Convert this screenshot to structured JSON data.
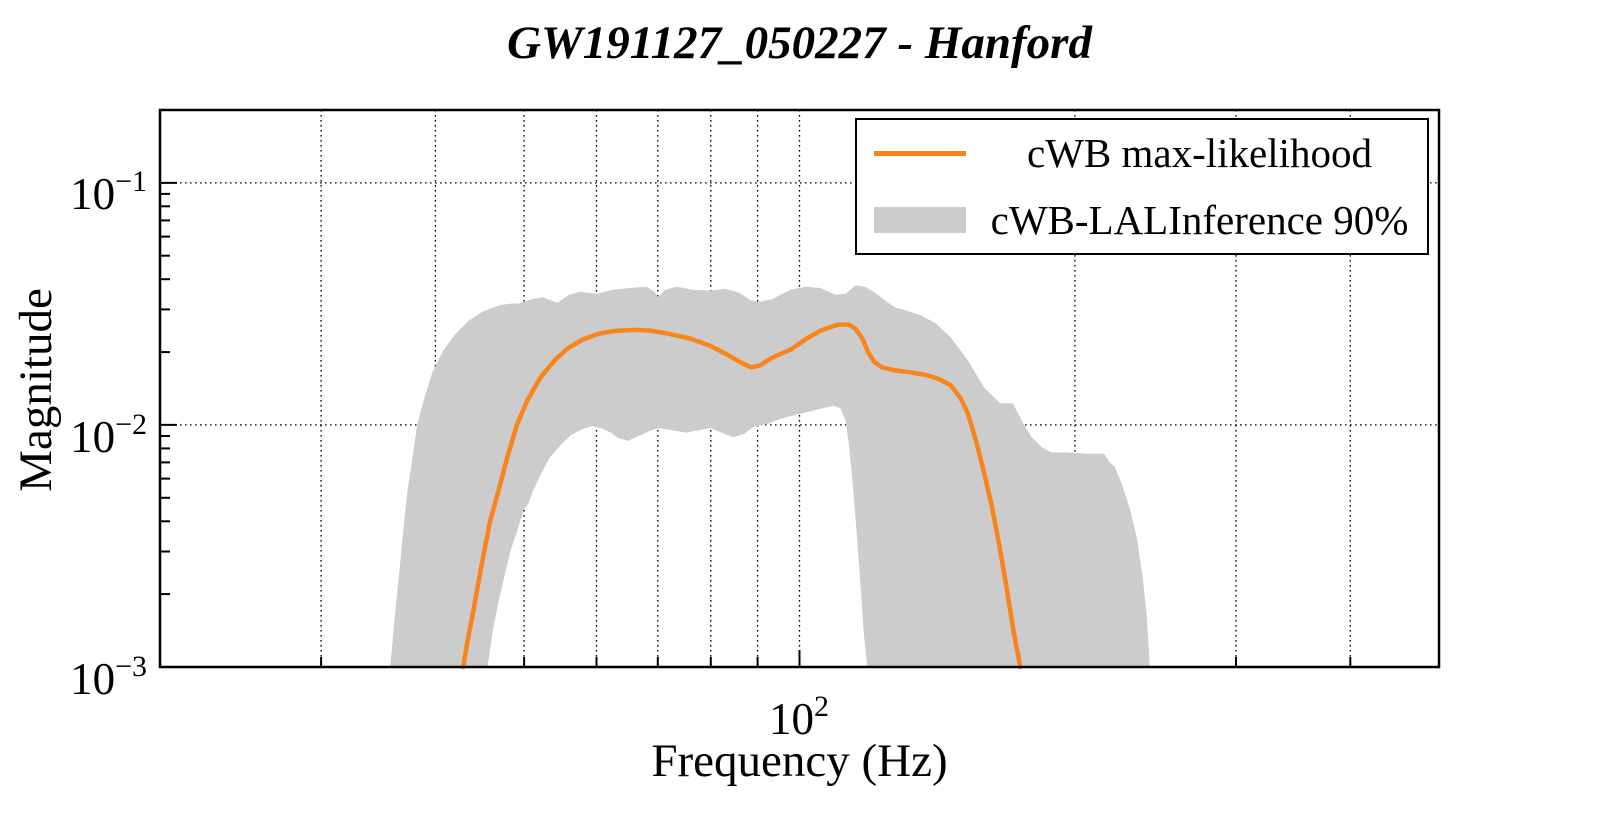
{
  "chart_data": {
    "type": "line",
    "title": "GW191127_050227 - Hanford",
    "xlabel": "Frequency (Hz)",
    "ylabel": "Magnitude",
    "x_scale": "log",
    "y_scale": "log",
    "x_range_hz": [
      20,
      500
    ],
    "y_range": [
      0.001,
      0.2
    ],
    "grid": "dotted",
    "x_gridlines_hz": [
      30,
      40,
      50,
      60,
      70,
      80,
      90,
      100,
      200,
      300,
      400
    ],
    "y_gridlines": [
      0.01,
      0.1
    ],
    "x_tick_labels": [
      {
        "base": "10",
        "exp": "2",
        "value": 100
      }
    ],
    "y_tick_labels": [
      {
        "base": "10",
        "exp": "−1",
        "value": 0.1
      },
      {
        "base": "10",
        "exp": "−2",
        "value": 0.01
      },
      {
        "base": "10",
        "exp": "−3",
        "value": 0.001
      }
    ],
    "legend": {
      "position": "top-right",
      "entries": [
        {
          "label": "cWB max-likelihood",
          "swatch": "line",
          "color": "#f8851c"
        },
        {
          "label": "cWB-LALInference 90%",
          "swatch": "box",
          "color": "#cccccc"
        }
      ]
    },
    "series": [
      {
        "name": "cWB max-likelihood",
        "kind": "line",
        "color": "#f8851c",
        "points": [
          [
            42.9,
            0.001
          ],
          [
            43.4,
            0.0013
          ],
          [
            44.0,
            0.0017
          ],
          [
            44.9,
            0.0026
          ],
          [
            45.9,
            0.004
          ],
          [
            47.1,
            0.0057
          ],
          [
            48.0,
            0.0075
          ],
          [
            49.1,
            0.01
          ],
          [
            50.4,
            0.0126
          ],
          [
            52.1,
            0.0157
          ],
          [
            54.0,
            0.0185
          ],
          [
            55.8,
            0.0207
          ],
          [
            57.9,
            0.0225
          ],
          [
            60.3,
            0.0238
          ],
          [
            63.1,
            0.0245
          ],
          [
            66.4,
            0.0247
          ],
          [
            68.9,
            0.0245
          ],
          [
            72.0,
            0.0238
          ],
          [
            76.1,
            0.0227
          ],
          [
            79.9,
            0.0212
          ],
          [
            83.6,
            0.0194
          ],
          [
            86.5,
            0.018
          ],
          [
            88.5,
            0.0173
          ],
          [
            90.5,
            0.0176
          ],
          [
            93.2,
            0.0189
          ],
          [
            97.8,
            0.0205
          ],
          [
            102.3,
            0.023
          ],
          [
            105.9,
            0.0247
          ],
          [
            110.3,
            0.026
          ],
          [
            113.1,
            0.026
          ],
          [
            115.1,
            0.025
          ],
          [
            117.1,
            0.0228
          ],
          [
            118.9,
            0.0199
          ],
          [
            120.7,
            0.0182
          ],
          [
            123.1,
            0.0173
          ],
          [
            127.2,
            0.0168
          ],
          [
            132.1,
            0.0165
          ],
          [
            137.3,
            0.0161
          ],
          [
            141.9,
            0.0155
          ],
          [
            146.3,
            0.0146
          ],
          [
            150.0,
            0.0129
          ],
          [
            152.7,
            0.0112
          ],
          [
            155.8,
            0.0087
          ],
          [
            158.9,
            0.0065
          ],
          [
            162.1,
            0.0047
          ],
          [
            165.3,
            0.0032
          ],
          [
            168.5,
            0.0021
          ],
          [
            171.4,
            0.0014
          ],
          [
            174.3,
            0.001
          ]
        ]
      },
      {
        "name": "cWB-LALInference 90%",
        "kind": "band",
        "color": "#cccccc",
        "upper": [
          [
            35.7,
            0.001
          ],
          [
            36.1,
            0.0016
          ],
          [
            36.5,
            0.0024
          ],
          [
            36.9,
            0.0037
          ],
          [
            37.3,
            0.0054
          ],
          [
            37.8,
            0.0075
          ],
          [
            38.2,
            0.01
          ],
          [
            38.9,
            0.0129
          ],
          [
            39.7,
            0.0165
          ],
          [
            40.8,
            0.0203
          ],
          [
            42.1,
            0.0238
          ],
          [
            43.5,
            0.0269
          ],
          [
            45.1,
            0.0295
          ],
          [
            47.1,
            0.0313
          ],
          [
            48.4,
            0.0317
          ],
          [
            49.3,
            0.0317
          ],
          [
            50.9,
            0.033
          ],
          [
            52.4,
            0.0337
          ],
          [
            53.4,
            0.0328
          ],
          [
            54.4,
            0.032
          ],
          [
            56.0,
            0.0345
          ],
          [
            57.6,
            0.0355
          ],
          [
            60.2,
            0.0348
          ],
          [
            62.5,
            0.0362
          ],
          [
            65.3,
            0.0368
          ],
          [
            68.1,
            0.0372
          ],
          [
            69.4,
            0.0355
          ],
          [
            70.1,
            0.0337
          ],
          [
            71.3,
            0.0362
          ],
          [
            73.5,
            0.0372
          ],
          [
            76.3,
            0.0362
          ],
          [
            79.9,
            0.0359
          ],
          [
            82.8,
            0.0365
          ],
          [
            85.9,
            0.0352
          ],
          [
            88.3,
            0.0328
          ],
          [
            90.3,
            0.0322
          ],
          [
            93.2,
            0.033
          ],
          [
            97.8,
            0.0362
          ],
          [
            101.5,
            0.0372
          ],
          [
            105.4,
            0.0368
          ],
          [
            109.5,
            0.0345
          ],
          [
            112.3,
            0.0348
          ],
          [
            115.1,
            0.0377
          ],
          [
            117.9,
            0.0372
          ],
          [
            120.9,
            0.0352
          ],
          [
            123.9,
            0.0328
          ],
          [
            127.2,
            0.0306
          ],
          [
            130.4,
            0.0298
          ],
          [
            135.7,
            0.0284
          ],
          [
            140.8,
            0.0263
          ],
          [
            146.3,
            0.023
          ],
          [
            152.7,
            0.0185
          ],
          [
            159.3,
            0.0142
          ],
          [
            165.7,
            0.0123
          ],
          [
            171.0,
            0.0123
          ],
          [
            176.0,
            0.01
          ],
          [
            179.4,
            0.0089
          ],
          [
            183.9,
            0.0081
          ],
          [
            188.2,
            0.0077
          ],
          [
            195.8,
            0.0077
          ],
          [
            206.0,
            0.0076
          ],
          [
            215.2,
            0.0076
          ],
          [
            218.4,
            0.007
          ],
          [
            221.1,
            0.0067
          ],
          [
            225.1,
            0.0057
          ],
          [
            229.7,
            0.0045
          ],
          [
            233.8,
            0.0034
          ],
          [
            237.3,
            0.0023
          ],
          [
            239.7,
            0.0016
          ],
          [
            241.5,
            0.001
          ]
        ],
        "lower": [
          [
            45.6,
            0.001
          ],
          [
            46.2,
            0.0014
          ],
          [
            46.8,
            0.0018
          ],
          [
            47.5,
            0.0023
          ],
          [
            48.3,
            0.003
          ],
          [
            49.3,
            0.0038
          ],
          [
            50.0,
            0.0045
          ],
          [
            50.5,
            0.0047
          ],
          [
            51.1,
            0.0053
          ],
          [
            52.1,
            0.0062
          ],
          [
            53.3,
            0.0073
          ],
          [
            54.9,
            0.0083
          ],
          [
            56.3,
            0.0091
          ],
          [
            57.9,
            0.0096
          ],
          [
            59.3,
            0.0099
          ],
          [
            60.7,
            0.0097
          ],
          [
            62.2,
            0.0093
          ],
          [
            63.4,
            0.0088
          ],
          [
            65.0,
            0.0086
          ],
          [
            66.7,
            0.009
          ],
          [
            68.9,
            0.0095
          ],
          [
            70.3,
            0.0097
          ],
          [
            72.6,
            0.0095
          ],
          [
            75.1,
            0.0093
          ],
          [
            77.6,
            0.0095
          ],
          [
            79.9,
            0.0097
          ],
          [
            82.2,
            0.0093
          ],
          [
            84.6,
            0.0089
          ],
          [
            87.0,
            0.0092
          ],
          [
            89.0,
            0.0098
          ],
          [
            92.3,
            0.0101
          ],
          [
            95.3,
            0.0106
          ],
          [
            99.0,
            0.011
          ],
          [
            102.8,
            0.0114
          ],
          [
            105.9,
            0.0117
          ],
          [
            108.9,
            0.012
          ],
          [
            110.9,
            0.0117
          ],
          [
            112.3,
            0.0104
          ],
          [
            113.3,
            0.0082
          ],
          [
            114.5,
            0.0054
          ],
          [
            115.6,
            0.0034
          ],
          [
            116.7,
            0.0021
          ],
          [
            117.5,
            0.0014
          ],
          [
            118.6,
            0.001
          ]
        ]
      }
    ]
  }
}
